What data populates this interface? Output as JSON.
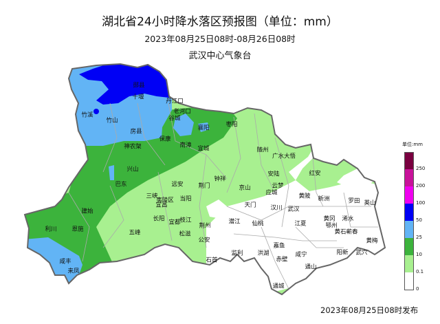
{
  "header": {
    "title": "湖北省24小时降水落区预报图（单位：mm）",
    "period": "2023年08月25日08时-08月26日08时",
    "issuer": "武汉中心气象台"
  },
  "footer": {
    "published": "2023年08月25日08时发布"
  },
  "legend": {
    "unit_label": "单位:mm",
    "classes": [
      {
        "range": "250+",
        "color": "#7a0040"
      },
      {
        "range": "200-250",
        "color": "#c8129a"
      },
      {
        "range": "100-200",
        "color": "#f000f0"
      },
      {
        "range": "50-100",
        "color": "#0000f5"
      },
      {
        "range": "25-50",
        "color": "#62b4f5"
      },
      {
        "range": "10-25",
        "color": "#3cb33c"
      },
      {
        "range": "0.1-10",
        "color": "#a8f090"
      },
      {
        "range": "0-0.1",
        "color": "#ffffff"
      }
    ],
    "ticks": [
      "250",
      "200",
      "100",
      "50",
      "25",
      "10",
      "0.1",
      "0"
    ]
  },
  "map": {
    "cities": [
      "郧县",
      "十堰",
      "丹江口",
      "竹溪",
      "竹山",
      "房县",
      "老河口",
      "谷城",
      "襄阳",
      "枣阳",
      "保康",
      "南漳",
      "宜城",
      "神农架",
      "兴山",
      "巴东",
      "随州",
      "广水大悟",
      "安陆",
      "云梦",
      "红安",
      "钟祥",
      "京山",
      "应城",
      "黄陂",
      "新洲",
      "罗田",
      "英山",
      "远安",
      "荆门",
      "三峡",
      "夷陵区",
      "宜昌",
      "当阳",
      "长阳",
      "宜都",
      "枝江",
      "松滋",
      "荆州",
      "公安",
      "石首",
      "五峰",
      "建始",
      "利川",
      "恩施",
      "咸丰",
      "来凤",
      "天门",
      "汉川",
      "武汉",
      "潜江",
      "仙桃",
      "江夏",
      "黄冈",
      "鄂州",
      "黄石",
      "浠水",
      "蕲春",
      "黄梅",
      "武穴",
      "阳新",
      "嘉鱼",
      "洪湖",
      "监利",
      "赤壁",
      "咸宁",
      "通山",
      "通城"
    ]
  }
}
